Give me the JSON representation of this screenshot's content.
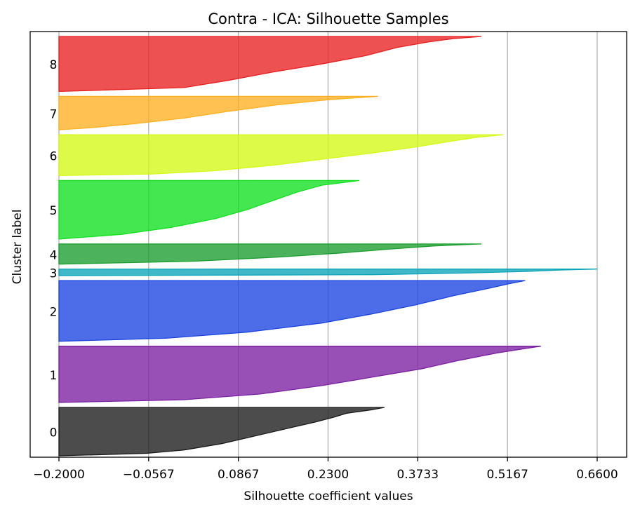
{
  "chart_data": {
    "type": "area",
    "title": "Contra - ICA: Silhouette Samples",
    "xlabel": "Silhouette coefficient values",
    "ylabel": "Cluster label",
    "xlim": [
      -0.2,
      0.66
    ],
    "x_ticks": [
      "−0.2000",
      "−0.0567",
      "0.0867",
      "0.2300",
      "0.3733",
      "0.5167",
      "0.6600"
    ],
    "x_tick_values": [
      -0.2,
      -0.0567,
      0.0867,
      0.23,
      0.3733,
      0.5167,
      0.66
    ],
    "grid": "vertical",
    "clusters": [
      {
        "label": "0",
        "color": "#1a1a1a",
        "sample_count": 110,
        "min": -0.2,
        "max": 0.32,
        "profile": [
          [
            0,
            0.32
          ],
          [
            0.05,
            0.3
          ],
          [
            0.12,
            0.26
          ],
          [
            0.2,
            0.24
          ],
          [
            0.3,
            0.21
          ],
          [
            0.45,
            0.16
          ],
          [
            0.6,
            0.11
          ],
          [
            0.75,
            0.06
          ],
          [
            0.88,
            0.0
          ],
          [
            0.95,
            -0.06
          ],
          [
            1,
            -0.2
          ]
        ]
      },
      {
        "label": "1",
        "color": "#7b1fa2",
        "sample_count": 128,
        "min": -0.2,
        "max": 0.57,
        "profile": [
          [
            0,
            0.57
          ],
          [
            0.05,
            0.54
          ],
          [
            0.12,
            0.5
          ],
          [
            0.25,
            0.44
          ],
          [
            0.4,
            0.38
          ],
          [
            0.55,
            0.3
          ],
          [
            0.7,
            0.22
          ],
          [
            0.85,
            0.12
          ],
          [
            0.95,
            0.0
          ],
          [
            1,
            -0.2
          ]
        ]
      },
      {
        "label": "2",
        "color": "#1a44e0",
        "sample_count": 138,
        "min": -0.2,
        "max": 0.545,
        "profile": [
          [
            0,
            0.545
          ],
          [
            0.05,
            0.52
          ],
          [
            0.12,
            0.49
          ],
          [
            0.25,
            0.43
          ],
          [
            0.4,
            0.37
          ],
          [
            0.55,
            0.3
          ],
          [
            0.7,
            0.22
          ],
          [
            0.85,
            0.1
          ],
          [
            0.95,
            -0.03
          ],
          [
            1,
            -0.2
          ]
        ]
      },
      {
        "label": "3",
        "color": "#0aa4b8",
        "sample_count": 15,
        "min": -0.2,
        "max": 0.66,
        "profile": [
          [
            0,
            0.66
          ],
          [
            0.15,
            0.6
          ],
          [
            0.35,
            0.55
          ],
          [
            0.6,
            0.45
          ],
          [
            0.85,
            0.3
          ],
          [
            1,
            -0.2
          ]
        ]
      },
      {
        "label": "4",
        "color": "#1a9e2e",
        "sample_count": 46,
        "min": -0.2,
        "max": 0.475,
        "profile": [
          [
            0,
            0.475
          ],
          [
            0.1,
            0.4
          ],
          [
            0.25,
            0.33
          ],
          [
            0.45,
            0.25
          ],
          [
            0.65,
            0.15
          ],
          [
            0.85,
            0.02
          ],
          [
            1,
            -0.2
          ]
        ]
      },
      {
        "label": "5",
        "color": "#11e01f",
        "sample_count": 133,
        "min": -0.2,
        "max": 0.28,
        "profile": [
          [
            0,
            0.28
          ],
          [
            0.08,
            0.22
          ],
          [
            0.2,
            0.18
          ],
          [
            0.35,
            0.14
          ],
          [
            0.5,
            0.1
          ],
          [
            0.65,
            0.05
          ],
          [
            0.8,
            -0.02
          ],
          [
            0.92,
            -0.1
          ],
          [
            1,
            -0.2
          ]
        ]
      },
      {
        "label": "6",
        "color": "#d4f916",
        "sample_count": 93,
        "min": -0.2,
        "max": 0.51,
        "profile": [
          [
            0,
            0.51
          ],
          [
            0.06,
            0.47
          ],
          [
            0.15,
            0.43
          ],
          [
            0.3,
            0.37
          ],
          [
            0.45,
            0.3
          ],
          [
            0.6,
            0.22
          ],
          [
            0.75,
            0.14
          ],
          [
            0.88,
            0.05
          ],
          [
            0.96,
            -0.05
          ],
          [
            1,
            -0.2
          ]
        ]
      },
      {
        "label": "7",
        "color": "#ffb020",
        "sample_count": 76,
        "min": -0.2,
        "max": 0.31,
        "profile": [
          [
            0,
            0.31
          ],
          [
            0.1,
            0.23
          ],
          [
            0.25,
            0.15
          ],
          [
            0.45,
            0.07
          ],
          [
            0.65,
            0.0
          ],
          [
            0.82,
            -0.08
          ],
          [
            0.94,
            -0.15
          ],
          [
            1,
            -0.2
          ]
        ]
      },
      {
        "label": "8",
        "color": "#e82020",
        "sample_count": 125,
        "min": -0.2,
        "max": 0.475,
        "profile": [
          [
            0,
            0.475
          ],
          [
            0.04,
            0.43
          ],
          [
            0.1,
            0.39
          ],
          [
            0.2,
            0.34
          ],
          [
            0.35,
            0.29
          ],
          [
            0.5,
            0.22
          ],
          [
            0.65,
            0.14
          ],
          [
            0.8,
            0.07
          ],
          [
            0.93,
            0.0
          ],
          [
            1,
            -0.2
          ]
        ]
      }
    ]
  }
}
